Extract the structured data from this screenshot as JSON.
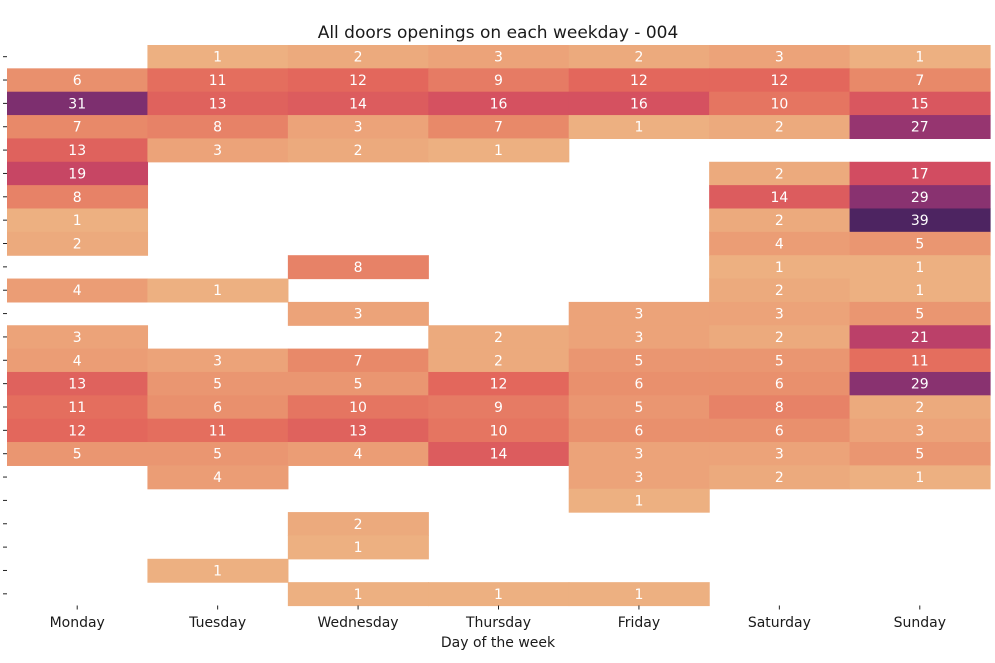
{
  "chart_data": {
    "type": "heatmap",
    "title": "All doors openings on each weekday - 004",
    "xlabel": "Day of the week",
    "ylabel": "",
    "categories": [
      "Monday",
      "Tuesday",
      "Wednesday",
      "Thursday",
      "Friday",
      "Saturday",
      "Sunday"
    ],
    "row_tick_labels": [
      "",
      "",
      "",
      "",
      "",
      "",
      "",
      "",
      "",
      "",
      "",
      "",
      "",
      "",
      "",
      "",
      "",
      "",
      "",
      "",
      "",
      "",
      "",
      ""
    ],
    "values": [
      [
        null,
        1,
        2,
        3,
        2,
        3,
        1
      ],
      [
        6,
        11,
        12,
        9,
        12,
        12,
        7
      ],
      [
        31,
        13,
        14,
        16,
        16,
        10,
        15
      ],
      [
        7,
        8,
        3,
        7,
        1,
        2,
        27
      ],
      [
        13,
        3,
        2,
        1,
        null,
        null,
        null
      ],
      [
        19,
        null,
        null,
        null,
        null,
        2,
        17
      ],
      [
        8,
        null,
        null,
        null,
        null,
        14,
        29
      ],
      [
        1,
        null,
        null,
        null,
        null,
        2,
        39
      ],
      [
        2,
        null,
        null,
        null,
        null,
        4,
        5
      ],
      [
        null,
        null,
        8,
        null,
        null,
        1,
        1
      ],
      [
        4,
        1,
        null,
        null,
        null,
        2,
        1
      ],
      [
        null,
        null,
        3,
        null,
        3,
        3,
        5
      ],
      [
        3,
        null,
        null,
        2,
        3,
        2,
        21
      ],
      [
        4,
        3,
        7,
        2,
        5,
        5,
        11
      ],
      [
        13,
        5,
        5,
        12,
        6,
        6,
        29
      ],
      [
        11,
        6,
        10,
        9,
        5,
        8,
        2
      ],
      [
        12,
        11,
        13,
        10,
        6,
        6,
        3
      ],
      [
        5,
        5,
        4,
        14,
        3,
        3,
        5
      ],
      [
        null,
        4,
        null,
        null,
        3,
        2,
        1
      ],
      [
        null,
        null,
        null,
        null,
        1,
        null,
        null
      ],
      [
        null,
        null,
        2,
        null,
        null,
        null,
        null
      ],
      [
        null,
        null,
        1,
        null,
        null,
        null,
        null
      ],
      [
        null,
        1,
        null,
        null,
        null,
        null,
        null
      ],
      [
        null,
        null,
        1,
        1,
        1,
        null,
        null
      ]
    ],
    "value_range": [
      1,
      39
    ],
    "colormap": "flare",
    "colormap_stops": [
      "#edb081",
      "#e98d6b",
      "#e3685c",
      "#d14a61",
      "#b13c6c",
      "#8f3371",
      "#6c2b6d",
      "#4d2461"
    ],
    "colorbar": false,
    "grid": false
  }
}
